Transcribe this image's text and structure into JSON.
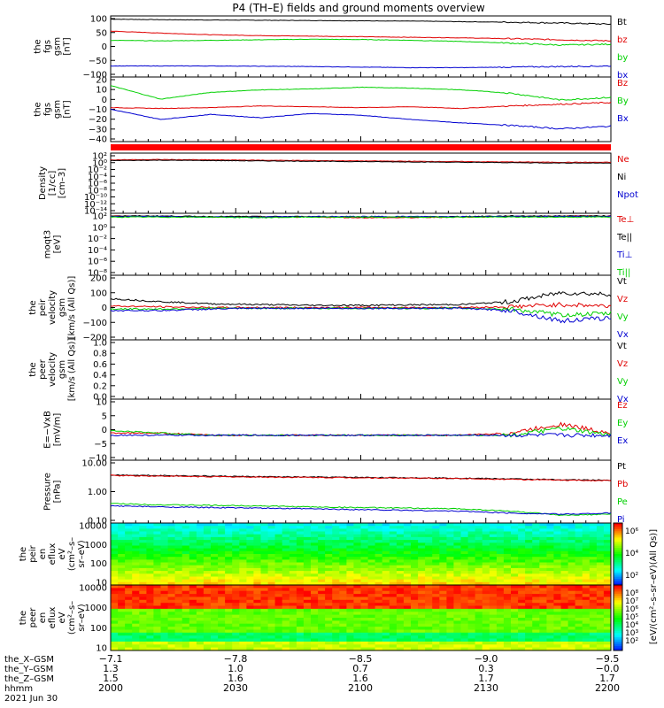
{
  "title": "P4 (TH–E) fields and ground moments overview",
  "colors": {
    "black": "#000000",
    "red": "#e00000",
    "green": "#00d000",
    "blue": "#0000d0"
  },
  "chart_data": [
    {
      "type": "line",
      "panel": "fgs-gsm",
      "ylabel": [
        "the",
        "fgs",
        "gsm",
        "[nT]"
      ],
      "ylim": [
        -100,
        100
      ],
      "yticks": [
        "100",
        "50",
        "0",
        "−50",
        "−100"
      ],
      "series": [
        {
          "name": "Bt",
          "color": "black",
          "values": [
            98,
            96,
            95,
            94,
            93,
            92,
            91,
            89,
            87,
            84,
            80
          ]
        },
        {
          "name": "bz",
          "color": "red",
          "values": [
            55,
            48,
            42,
            39,
            37,
            35,
            33,
            31,
            28,
            24,
            20
          ]
        },
        {
          "name": "by",
          "color": "green",
          "values": [
            22,
            20,
            22,
            24,
            26,
            25,
            22,
            18,
            12,
            5,
            8
          ]
        },
        {
          "name": "bx",
          "color": "blue",
          "values": [
            -70,
            -70,
            -70,
            -71,
            -72,
            -74,
            -76,
            -76,
            -74,
            -72,
            -70
          ]
        }
      ]
    },
    {
      "type": "line",
      "panel": "fgs-gsm-detail",
      "ylabel": [
        "the",
        "fgs",
        "gsm",
        "[nT]"
      ],
      "ylim": [
        -45,
        25
      ],
      "yticks": [
        "20",
        "10",
        "0",
        "−10",
        "−20",
        "−30",
        "−40"
      ],
      "series": [
        {
          "name": "Bz",
          "color": "red",
          "values": [
            -8,
            -9,
            -8,
            -6,
            -7,
            -8,
            -7,
            -9,
            -6,
            -4,
            -2
          ]
        },
        {
          "name": "By",
          "color": "green",
          "values": [
            18,
            2,
            10,
            13,
            14,
            16,
            15,
            13,
            9,
            1,
            4
          ]
        },
        {
          "name": "Bx",
          "color": "blue",
          "values": [
            -10,
            -22,
            -16,
            -20,
            -15,
            -17,
            -22,
            -26,
            -29,
            -33,
            -30
          ]
        }
      ]
    },
    {
      "type": "line",
      "panel": "density",
      "ylabel": [
        "Density",
        "[1/cc]",
        "[cm–3]"
      ],
      "ylim": [
        -14,
        2
      ],
      "yscale": "log",
      "yticks": [
        "10²",
        "10⁰",
        "10⁻²",
        "10⁻⁴",
        "10⁻⁶",
        "10⁻⁸",
        "10⁻¹⁰",
        "10⁻¹²",
        "10⁻¹⁴"
      ],
      "series": [
        {
          "name": "Ne",
          "color": "red",
          "values": [
            0.8,
            0.9,
            0.8,
            0.7,
            0.6,
            0.5,
            0.4,
            0.3,
            0.2,
            0.1,
            0.1
          ]
        },
        {
          "name": "Ni",
          "color": "black",
          "values": [
            0.6,
            0.7,
            0.6,
            0.5,
            0.4,
            0.3,
            0.2,
            0.1,
            0.0,
            -0.1,
            -0.1
          ]
        },
        {
          "name": "Npot",
          "color": "blue",
          "values": [
            null,
            null,
            null,
            null,
            null,
            null,
            null,
            null,
            null,
            null,
            null
          ]
        }
      ]
    },
    {
      "type": "line",
      "panel": "temperature",
      "ylabel": [
        "moqt3",
        "[eV]"
      ],
      "ylim": [
        -8,
        2
      ],
      "yscale": "log",
      "yticks": [
        "10²",
        "10⁰",
        "10⁻²",
        "10⁻⁴",
        "10⁻⁶",
        "10⁻⁸"
      ],
      "series": [
        {
          "name": "Te⊥",
          "color": "red",
          "values": [
            2.0,
            1.9,
            1.8,
            1.8,
            1.8,
            1.7,
            1.7,
            1.8,
            1.9,
            2.0,
            2.0
          ]
        },
        {
          "name": "Te||",
          "color": "black",
          "values": [
            2.0,
            2.0,
            1.9,
            1.9,
            1.9,
            1.8,
            1.8,
            1.9,
            2.0,
            2.0,
            2.0
          ]
        },
        {
          "name": "Ti⊥",
          "color": "blue",
          "values": [
            1.9,
            1.9,
            1.8,
            1.8,
            1.9,
            1.9,
            1.9,
            1.9,
            1.9,
            1.9,
            1.9
          ]
        },
        {
          "name": "Ti||",
          "color": "green",
          "values": [
            1.8,
            1.8,
            1.8,
            1.7,
            1.8,
            1.8,
            1.8,
            1.8,
            1.8,
            1.8,
            1.8
          ]
        }
      ]
    },
    {
      "type": "line",
      "panel": "peir-velocity",
      "ylabel": [
        "the",
        "peir",
        "velocity",
        "gsm",
        "[km/s (All Qs)]"
      ],
      "ylim": [
        -200,
        200
      ],
      "yticks": [
        "200",
        "100",
        "0",
        "−100",
        "−200"
      ],
      "series": [
        {
          "name": "Vt",
          "color": "black",
          "values": [
            60,
            40,
            25,
            20,
            15,
            15,
            18,
            20,
            40,
            100,
            90
          ]
        },
        {
          "name": "Vz",
          "color": "red",
          "values": [
            10,
            5,
            0,
            0,
            0,
            0,
            0,
            0,
            5,
            20,
            10
          ]
        },
        {
          "name": "Vy",
          "color": "green",
          "values": [
            -10,
            -10,
            -5,
            -5,
            -5,
            -5,
            -5,
            -5,
            -10,
            -50,
            -40
          ]
        },
        {
          "name": "Vx",
          "color": "blue",
          "values": [
            -20,
            -20,
            -10,
            -5,
            -5,
            -5,
            -5,
            -5,
            -20,
            -90,
            -70
          ]
        }
      ]
    },
    {
      "type": "line",
      "panel": "peer-velocity",
      "ylabel": [
        "the",
        "peer",
        "velocity",
        "gsm",
        "[km/s (All Qs)]"
      ],
      "ylim": [
        0,
        1
      ],
      "yticks": [
        "1.0",
        "0.8",
        "0.6",
        "0.4",
        "0.2",
        "0.0"
      ],
      "series": [
        {
          "name": "Vt",
          "color": "black",
          "values": []
        },
        {
          "name": "Vz",
          "color": "red",
          "values": []
        },
        {
          "name": "Vy",
          "color": "green",
          "values": []
        },
        {
          "name": "Vx",
          "color": "blue",
          "values": []
        }
      ]
    },
    {
      "type": "line",
      "panel": "efield",
      "ylabel": [
        "E=−VxB",
        "[mV/m]"
      ],
      "ylim": [
        -10,
        15
      ],
      "yticks": [
        "10",
        "5",
        "0",
        "−5",
        "−10"
      ],
      "series": [
        {
          "name": "Ez",
          "color": "red",
          "values": [
            1,
            1,
            0,
            0,
            0,
            0,
            0,
            0,
            1,
            5,
            1
          ]
        },
        {
          "name": "Ey",
          "color": "green",
          "values": [
            2,
            1,
            0,
            0,
            0,
            0,
            0,
            0,
            0,
            3,
            0
          ]
        },
        {
          "name": "Ex",
          "color": "blue",
          "values": [
            0,
            0,
            0,
            0,
            0,
            0,
            0,
            0,
            0,
            0,
            0
          ]
        }
      ]
    },
    {
      "type": "line",
      "panel": "pressure",
      "ylabel": [
        "Pressure",
        "[nPa]"
      ],
      "ylim": [
        0.05,
        12
      ],
      "yscale": "log",
      "yticks": [
        "10.00",
        "1.00",
        "0.10"
      ],
      "series": [
        {
          "name": "Pt",
          "color": "black",
          "values": [
            3.8,
            3.6,
            3.4,
            3.2,
            3.1,
            3.0,
            2.9,
            2.8,
            2.6,
            2.4,
            2.3
          ]
        },
        {
          "name": "Pb",
          "color": "red",
          "values": [
            3.6,
            3.4,
            3.2,
            3.1,
            3.0,
            2.9,
            2.8,
            2.7,
            2.5,
            2.3,
            2.2
          ]
        },
        {
          "name": "Pe",
          "color": "green",
          "values": [
            0.25,
            0.22,
            0.21,
            0.2,
            0.18,
            0.17,
            0.16,
            0.15,
            0.12,
            0.08,
            0.09
          ]
        },
        {
          "name": "Pi",
          "color": "blue",
          "values": [
            0.2,
            0.18,
            0.17,
            0.16,
            0.15,
            0.14,
            0.13,
            0.12,
            0.1,
            0.09,
            0.1
          ]
        }
      ]
    },
    {
      "type": "heatmap",
      "panel": "peir-eflux",
      "ylabel": [
        "the",
        "peir",
        "en",
        "eflux",
        "eV",
        "(cm²–s–",
        "sr–eV)"
      ],
      "ylim": [
        5,
        30000
      ],
      "yscale": "log",
      "yticks": [
        "10000",
        "1000",
        "100",
        "10"
      ],
      "colorbar": {
        "ticks": [
          "10⁶",
          "10⁴",
          "10²"
        ]
      }
    },
    {
      "type": "heatmap",
      "panel": "peer-eflux",
      "ylabel": [
        "the",
        "peer",
        "en",
        "eflux",
        "eV",
        "(cm²–s–",
        "sr–eV)"
      ],
      "ylim": [
        5,
        30000
      ],
      "yscale": "log",
      "yticks": [
        "10000",
        "1000",
        "100",
        "10"
      ],
      "colorbar": {
        "ticks": [
          "10⁸",
          "10⁷",
          "10⁶",
          "10⁵",
          "10⁴",
          "10³",
          "10²"
        ]
      }
    }
  ],
  "colorbar_label": "[eV/(cm²–s–sr–eV)(All Qs)]",
  "xaxis": {
    "rows": [
      {
        "label": "the_X–GSM",
        "values": [
          "−7.1",
          "−7.8",
          "−8.5",
          "−9.0",
          "−9.5"
        ]
      },
      {
        "label": "the_Y–GSM",
        "values": [
          "1.3",
          "1.0",
          "0.7",
          "0.3",
          "−0.0"
        ]
      },
      {
        "label": "the_Z–GSM",
        "values": [
          "1.5",
          "1.6",
          "1.6",
          "1.7",
          "1.7"
        ]
      },
      {
        "label": "hhmm",
        "values": [
          "2000",
          "2030",
          "2100",
          "2130",
          "2200"
        ]
      }
    ],
    "date": "2021 Jun 30"
  }
}
